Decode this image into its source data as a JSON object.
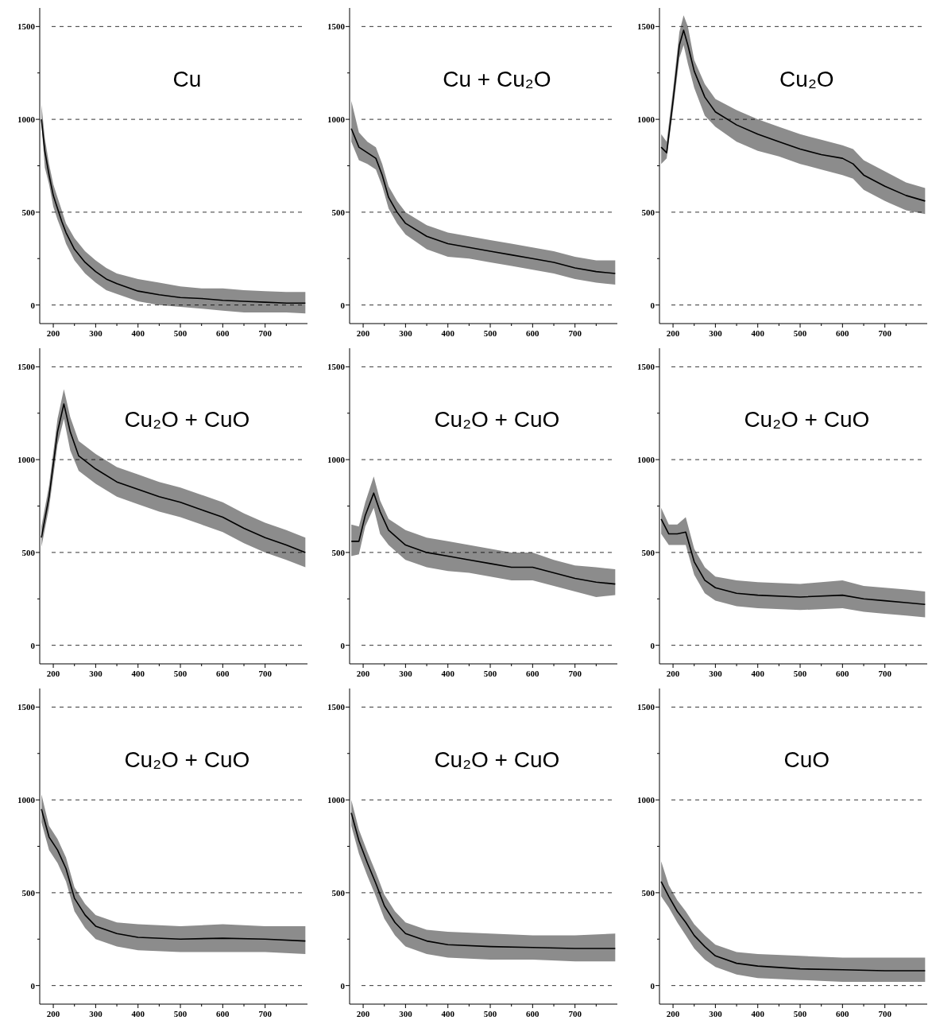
{
  "chart_data": [
    {
      "type": "line",
      "title": "Cu",
      "xlim": [
        168,
        800
      ],
      "ylim": [
        -100,
        1600
      ],
      "xticks": [
        200,
        {
          "value": 250,
          "label": null
        },
        300,
        {
          "value": 350,
          "label": null
        },
        400,
        {
          "value": 450,
          "label": null
        },
        500,
        {
          "value": 550,
          "label": null
        },
        600,
        {
          "value": 650,
          "label": null
        },
        700,
        {
          "value": 750,
          "label": null
        }
      ],
      "yticks": [
        0,
        {
          "value": 250,
          "label": null
        },
        500,
        {
          "value": 750,
          "label": null
        },
        1000,
        {
          "value": 1250,
          "label": null
        },
        1500
      ],
      "grid": "y",
      "line_style": "solid",
      "series": [
        {
          "color": "#000000",
          "x": [
            172,
            180,
            190,
            200,
            210,
            220,
            230,
            250,
            275,
            300,
            325,
            350,
            400,
            450,
            500,
            550,
            600,
            650,
            700,
            750,
            795
          ],
          "values": [
            1000,
            830,
            700,
            590,
            520,
            450,
            390,
            300,
            230,
            180,
            140,
            115,
            75,
            55,
            40,
            35,
            25,
            20,
            15,
            10,
            10
          ],
          "lower": [
            980,
            740,
            650,
            530,
            460,
            400,
            330,
            240,
            170,
            120,
            80,
            60,
            20,
            0,
            -10,
            -20,
            -30,
            -40,
            -40,
            -40,
            -45
          ],
          "upper": [
            1080,
            900,
            760,
            650,
            580,
            510,
            440,
            360,
            290,
            240,
            200,
            170,
            140,
            120,
            100,
            90,
            90,
            80,
            75,
            70,
            70
          ]
        }
      ]
    },
    {
      "type": "line",
      "title": "Cu + Cu₂O",
      "xlim": [
        168,
        800
      ],
      "ylim": [
        -100,
        1600
      ],
      "xticks": [
        200,
        {
          "value": 250,
          "label": null
        },
        300,
        {
          "value": 350,
          "label": null
        },
        400,
        {
          "value": 450,
          "label": null
        },
        500,
        {
          "value": 550,
          "label": null
        },
        600,
        {
          "value": 650,
          "label": null
        },
        700,
        {
          "value": 750,
          "label": null
        }
      ],
      "yticks": [
        0,
        {
          "value": 250,
          "label": null
        },
        500,
        {
          "value": 750,
          "label": null
        },
        1000,
        {
          "value": 1250,
          "label": null
        },
        1500
      ],
      "grid": "y",
      "line_style": "solid",
      "series": [
        {
          "color": "#000000",
          "x": [
            172,
            190,
            210,
            230,
            245,
            260,
            280,
            300,
            350,
            400,
            450,
            500,
            550,
            600,
            650,
            700,
            750,
            795
          ],
          "values": [
            950,
            850,
            820,
            790,
            700,
            580,
            500,
            440,
            370,
            330,
            310,
            290,
            270,
            250,
            230,
            200,
            180,
            170
          ],
          "lower": [
            880,
            780,
            760,
            730,
            640,
            520,
            440,
            380,
            300,
            260,
            250,
            230,
            210,
            190,
            170,
            140,
            120,
            110
          ],
          "upper": [
            1100,
            930,
            880,
            850,
            760,
            640,
            560,
            500,
            430,
            390,
            370,
            350,
            330,
            310,
            290,
            260,
            240,
            240
          ]
        }
      ]
    },
    {
      "type": "line",
      "title": "Cu₂O",
      "xlim": [
        168,
        800
      ],
      "ylim": [
        -100,
        1600
      ],
      "xticks": [
        200,
        {
          "value": 250,
          "label": null
        },
        300,
        {
          "value": 350,
          "label": null
        },
        400,
        {
          "value": 450,
          "label": null
        },
        500,
        {
          "value": 550,
          "label": null
        },
        600,
        {
          "value": 650,
          "label": null
        },
        700,
        {
          "value": 750,
          "label": null
        }
      ],
      "yticks": [
        0,
        {
          "value": 250,
          "label": null
        },
        500,
        {
          "value": 750,
          "label": null
        },
        1000,
        {
          "value": 1250,
          "label": null
        },
        1500
      ],
      "grid": "y",
      "line_style": "solid",
      "series": [
        {
          "color": "#000000",
          "x": [
            172,
            185,
            200,
            215,
            225,
            235,
            250,
            275,
            300,
            350,
            400,
            450,
            500,
            550,
            600,
            625,
            650,
            700,
            750,
            795
          ],
          "values": [
            850,
            820,
            1100,
            1400,
            1480,
            1400,
            1260,
            1120,
            1040,
            970,
            920,
            880,
            840,
            810,
            790,
            760,
            700,
            640,
            590,
            560
          ],
          "lower": [
            760,
            790,
            1050,
            1330,
            1400,
            1300,
            1170,
            1020,
            960,
            880,
            830,
            800,
            760,
            730,
            700,
            680,
            620,
            560,
            510,
            490
          ],
          "upper": [
            920,
            880,
            1160,
            1470,
            1560,
            1500,
            1320,
            1190,
            1110,
            1050,
            1000,
            960,
            920,
            890,
            860,
            840,
            780,
            720,
            660,
            630
          ]
        }
      ]
    },
    {
      "type": "line",
      "title": "Cu₂O + CuO",
      "xlim": [
        168,
        800
      ],
      "ylim": [
        -100,
        1600
      ],
      "xticks": [
        200,
        {
          "value": 250,
          "label": null
        },
        300,
        {
          "value": 350,
          "label": null
        },
        400,
        {
          "value": 450,
          "label": null
        },
        500,
        {
          "value": 550,
          "label": null
        },
        600,
        {
          "value": 650,
          "label": null
        },
        700,
        {
          "value": 750,
          "label": null
        }
      ],
      "yticks": [
        0,
        {
          "value": 250,
          "label": null
        },
        500,
        {
          "value": 750,
          "label": null
        },
        1000,
        {
          "value": 1250,
          "label": null
        },
        1500
      ],
      "grid": "y",
      "line_style": "solid",
      "series": [
        {
          "color": "#000000",
          "x": [
            172,
            190,
            210,
            225,
            240,
            260,
            300,
            350,
            400,
            450,
            500,
            550,
            600,
            650,
            700,
            750,
            795
          ],
          "values": [
            580,
            800,
            1150,
            1300,
            1150,
            1020,
            950,
            880,
            840,
            800,
            770,
            730,
            690,
            630,
            580,
            540,
            500
          ],
          "lower": [
            530,
            740,
            1080,
            1220,
            1050,
            940,
            870,
            800,
            760,
            720,
            690,
            650,
            610,
            550,
            500,
            460,
            420
          ],
          "upper": [
            640,
            860,
            1220,
            1380,
            1230,
            1100,
            1030,
            960,
            920,
            880,
            850,
            810,
            770,
            710,
            660,
            620,
            580
          ]
        }
      ]
    },
    {
      "type": "line",
      "title": "Cu₂O + CuO",
      "xlim": [
        168,
        800
      ],
      "ylim": [
        -100,
        1600
      ],
      "xticks": [
        200,
        {
          "value": 250,
          "label": null
        },
        300,
        {
          "value": 350,
          "label": null
        },
        400,
        {
          "value": 450,
          "label": null
        },
        500,
        {
          "value": 550,
          "label": null
        },
        600,
        {
          "value": 650,
          "label": null
        },
        700,
        {
          "value": 750,
          "label": null
        }
      ],
      "yticks": [
        0,
        {
          "value": 250,
          "label": null
        },
        500,
        {
          "value": 750,
          "label": null
        },
        1000,
        {
          "value": 1250,
          "label": null
        },
        1500
      ],
      "grid": "y",
      "line_style": "solid",
      "series": [
        {
          "color": "#000000",
          "x": [
            172,
            190,
            205,
            225,
            240,
            260,
            300,
            350,
            400,
            450,
            500,
            550,
            600,
            650,
            700,
            750,
            795
          ],
          "values": [
            560,
            560,
            700,
            820,
            720,
            620,
            540,
            500,
            480,
            460,
            440,
            420,
            420,
            390,
            360,
            340,
            330
          ],
          "lower": [
            480,
            490,
            640,
            740,
            600,
            540,
            460,
            420,
            400,
            390,
            370,
            350,
            350,
            320,
            290,
            260,
            270
          ],
          "upper": [
            650,
            640,
            770,
            910,
            780,
            680,
            620,
            580,
            560,
            540,
            520,
            500,
            500,
            460,
            430,
            420,
            410
          ]
        }
      ]
    },
    {
      "type": "line",
      "title": "Cu₂O + CuO",
      "xlim": [
        168,
        800
      ],
      "ylim": [
        -100,
        1600
      ],
      "xticks": [
        200,
        {
          "value": 250,
          "label": null
        },
        300,
        {
          "value": 350,
          "label": null
        },
        400,
        {
          "value": 450,
          "label": null
        },
        500,
        {
          "value": 550,
          "label": null
        },
        600,
        {
          "value": 650,
          "label": null
        },
        700,
        {
          "value": 750,
          "label": null
        }
      ],
      "yticks": [
        0,
        {
          "value": 250,
          "label": null
        },
        500,
        {
          "value": 750,
          "label": null
        },
        1000,
        {
          "value": 1250,
          "label": null
        },
        1500
      ],
      "grid": "y",
      "line_style": "solid",
      "series": [
        {
          "color": "#000000",
          "x": [
            172,
            190,
            210,
            230,
            250,
            275,
            300,
            350,
            400,
            500,
            600,
            650,
            700,
            750,
            795
          ],
          "values": [
            680,
            600,
            600,
            610,
            450,
            350,
            310,
            280,
            270,
            260,
            270,
            250,
            240,
            230,
            220
          ],
          "lower": [
            600,
            540,
            540,
            540,
            380,
            280,
            240,
            210,
            200,
            190,
            200,
            180,
            170,
            160,
            150
          ],
          "upper": [
            740,
            650,
            650,
            690,
            520,
            420,
            370,
            350,
            340,
            330,
            350,
            320,
            310,
            300,
            290
          ]
        }
      ]
    },
    {
      "type": "line",
      "title": "Cu₂O + CuO",
      "xlim": [
        168,
        800
      ],
      "ylim": [
        -100,
        1600
      ],
      "xticks": [
        200,
        {
          "value": 250,
          "label": null
        },
        300,
        {
          "value": 350,
          "label": null
        },
        400,
        {
          "value": 450,
          "label": null
        },
        500,
        {
          "value": 550,
          "label": null
        },
        600,
        {
          "value": 650,
          "label": null
        },
        700,
        {
          "value": 750,
          "label": null
        }
      ],
      "yticks": [
        0,
        {
          "value": 250,
          "label": null
        },
        500,
        {
          "value": 750,
          "label": null
        },
        1000,
        {
          "value": 1250,
          "label": null
        },
        1500
      ],
      "grid": "y",
      "line_style": "solid",
      "series": [
        {
          "color": "#000000",
          "x": [
            172,
            190,
            210,
            230,
            250,
            275,
            300,
            350,
            400,
            500,
            600,
            700,
            795
          ],
          "values": [
            950,
            800,
            730,
            630,
            470,
            380,
            320,
            280,
            260,
            250,
            255,
            250,
            240
          ],
          "lower": [
            880,
            730,
            660,
            560,
            400,
            310,
            250,
            210,
            190,
            180,
            180,
            180,
            170
          ],
          "upper": [
            1030,
            860,
            790,
            690,
            530,
            440,
            380,
            340,
            330,
            320,
            330,
            320,
            320
          ]
        }
      ]
    },
    {
      "type": "line",
      "title": "Cu₂O + CuO",
      "xlim": [
        168,
        800
      ],
      "ylim": [
        -100,
        1600
      ],
      "xticks": [
        200,
        {
          "value": 250,
          "label": null
        },
        300,
        {
          "value": 350,
          "label": null
        },
        400,
        {
          "value": 450,
          "label": null
        },
        500,
        {
          "value": 550,
          "label": null
        },
        600,
        {
          "value": 650,
          "label": null
        },
        700,
        {
          "value": 750,
          "label": null
        }
      ],
      "yticks": [
        0,
        {
          "value": 250,
          "label": null
        },
        500,
        {
          "value": 750,
          "label": null
        },
        1000,
        {
          "value": 1250,
          "label": null
        },
        1500
      ],
      "grid": "y",
      "line_style": "solid",
      "series": [
        {
          "color": "#000000",
          "x": [
            172,
            190,
            210,
            230,
            250,
            275,
            300,
            350,
            400,
            500,
            600,
            700,
            795
          ],
          "values": [
            930,
            780,
            660,
            550,
            430,
            340,
            280,
            240,
            220,
            210,
            205,
            200,
            200
          ],
          "lower": [
            860,
            710,
            590,
            480,
            360,
            270,
            210,
            170,
            150,
            140,
            140,
            130,
            130
          ],
          "upper": [
            1000,
            840,
            720,
            610,
            490,
            400,
            340,
            300,
            290,
            280,
            270,
            270,
            280
          ]
        }
      ]
    },
    {
      "type": "line",
      "title": "CuO",
      "xlim": [
        168,
        800
      ],
      "ylim": [
        -100,
        1600
      ],
      "xticks": [
        200,
        {
          "value": 250,
          "label": null
        },
        300,
        {
          "value": 350,
          "label": null
        },
        400,
        {
          "value": 450,
          "label": null
        },
        500,
        {
          "value": 550,
          "label": null
        },
        600,
        {
          "value": 650,
          "label": null
        },
        700,
        {
          "value": 750,
          "label": null
        }
      ],
      "yticks": [
        0,
        {
          "value": 250,
          "label": null
        },
        500,
        {
          "value": 750,
          "label": null
        },
        1000,
        {
          "value": 1250,
          "label": null
        },
        1500
      ],
      "grid": "y",
      "line_style": "solid",
      "series": [
        {
          "color": "#000000",
          "x": [
            172,
            190,
            210,
            230,
            250,
            275,
            300,
            350,
            400,
            500,
            600,
            700,
            795
          ],
          "values": [
            560,
            480,
            400,
            340,
            270,
            210,
            160,
            120,
            105,
            90,
            85,
            80,
            80
          ],
          "lower": [
            480,
            420,
            340,
            270,
            200,
            140,
            100,
            60,
            40,
            30,
            20,
            20,
            20
          ],
          "upper": [
            670,
            540,
            460,
            400,
            330,
            270,
            220,
            180,
            170,
            160,
            150,
            150,
            150
          ]
        }
      ]
    }
  ]
}
